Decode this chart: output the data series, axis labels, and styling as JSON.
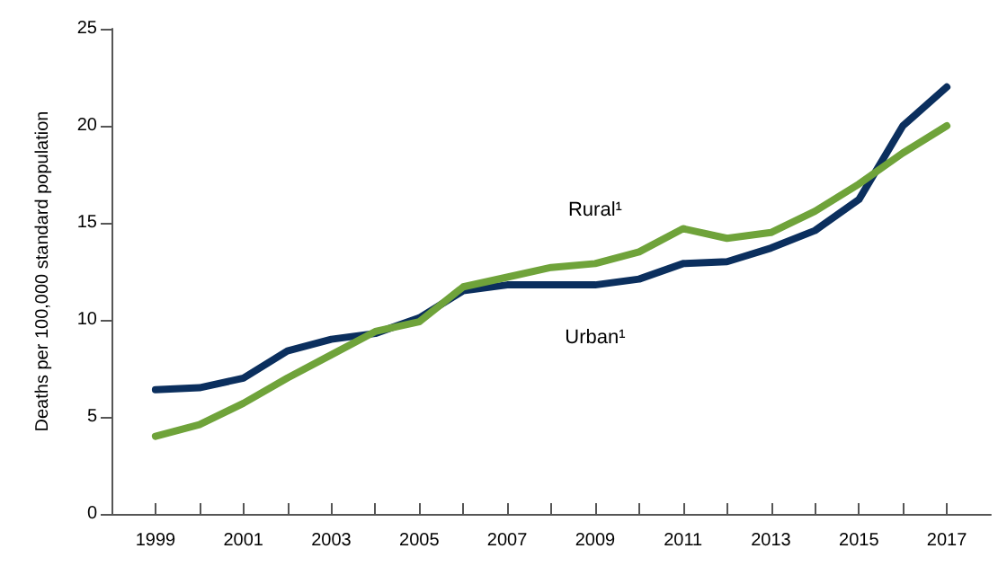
{
  "chart_data": {
    "type": "line",
    "ylabel": "Deaths per 100,000 standard population",
    "x": [
      1999,
      2000,
      2001,
      2002,
      2003,
      2004,
      2005,
      2006,
      2007,
      2008,
      2009,
      2010,
      2011,
      2012,
      2013,
      2014,
      2015,
      2016,
      2017
    ],
    "xlim": [
      1998,
      2018
    ],
    "xticks": [
      1999,
      {
        "value": 2000,
        "label": null
      },
      2001,
      {
        "value": 2002,
        "label": null
      },
      2003,
      {
        "value": 2004,
        "label": null
      },
      2005,
      {
        "value": 2006,
        "label": null
      },
      2007,
      {
        "value": 2008,
        "label": null
      },
      2009,
      {
        "value": 2010,
        "label": null
      },
      2011,
      {
        "value": 2012,
        "label": null
      },
      2013,
      {
        "value": 2014,
        "label": null
      },
      2015,
      {
        "value": 2016,
        "label": null
      },
      2017
    ],
    "ylim": [
      0,
      25
    ],
    "yticks": [
      0,
      5,
      10,
      15,
      20,
      25
    ],
    "grid": false,
    "legend": false,
    "marker": "none",
    "line_style": "solid",
    "series": [
      {
        "name": "Urban¹",
        "color": "#0b2f5e",
        "values": [
          6.4,
          6.5,
          7.0,
          8.4,
          9.0,
          9.3,
          10.1,
          11.5,
          11.8,
          11.8,
          11.8,
          12.1,
          12.9,
          13.0,
          13.7,
          14.6,
          16.2,
          20.0,
          22.0
        ]
      },
      {
        "name": "Rural¹",
        "color": "#6fa33a",
        "values": [
          4.0,
          4.6,
          5.7,
          7.0,
          8.2,
          9.4,
          9.9,
          11.7,
          12.2,
          12.7,
          12.9,
          13.5,
          14.7,
          14.2,
          14.5,
          15.6,
          17.0,
          18.6,
          20.0
        ]
      }
    ]
  }
}
